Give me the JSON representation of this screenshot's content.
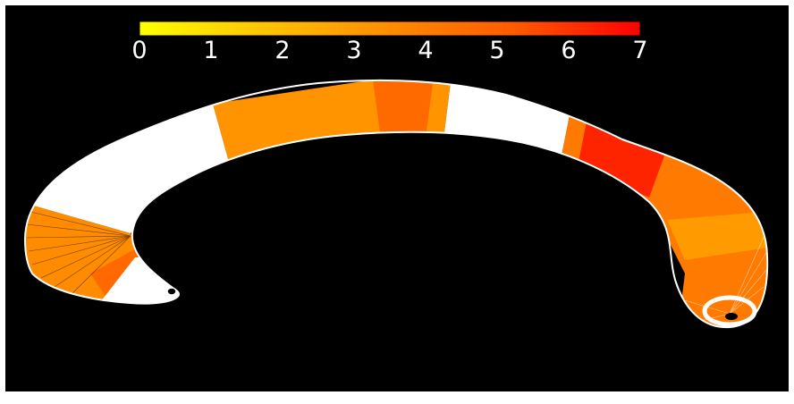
{
  "colorbar": {
    "gradient": [
      "#ffff00",
      "#ffc400",
      "#ff8c00",
      "#ff5a00",
      "#ff0000"
    ],
    "ticks": [
      "0",
      "1",
      "2",
      "3",
      "4",
      "5",
      "6",
      "7"
    ],
    "min": 0,
    "max": 7
  },
  "colors": {
    "background": "#000000",
    "outline": "#ffffff",
    "no_data": "#ffffff"
  }
}
